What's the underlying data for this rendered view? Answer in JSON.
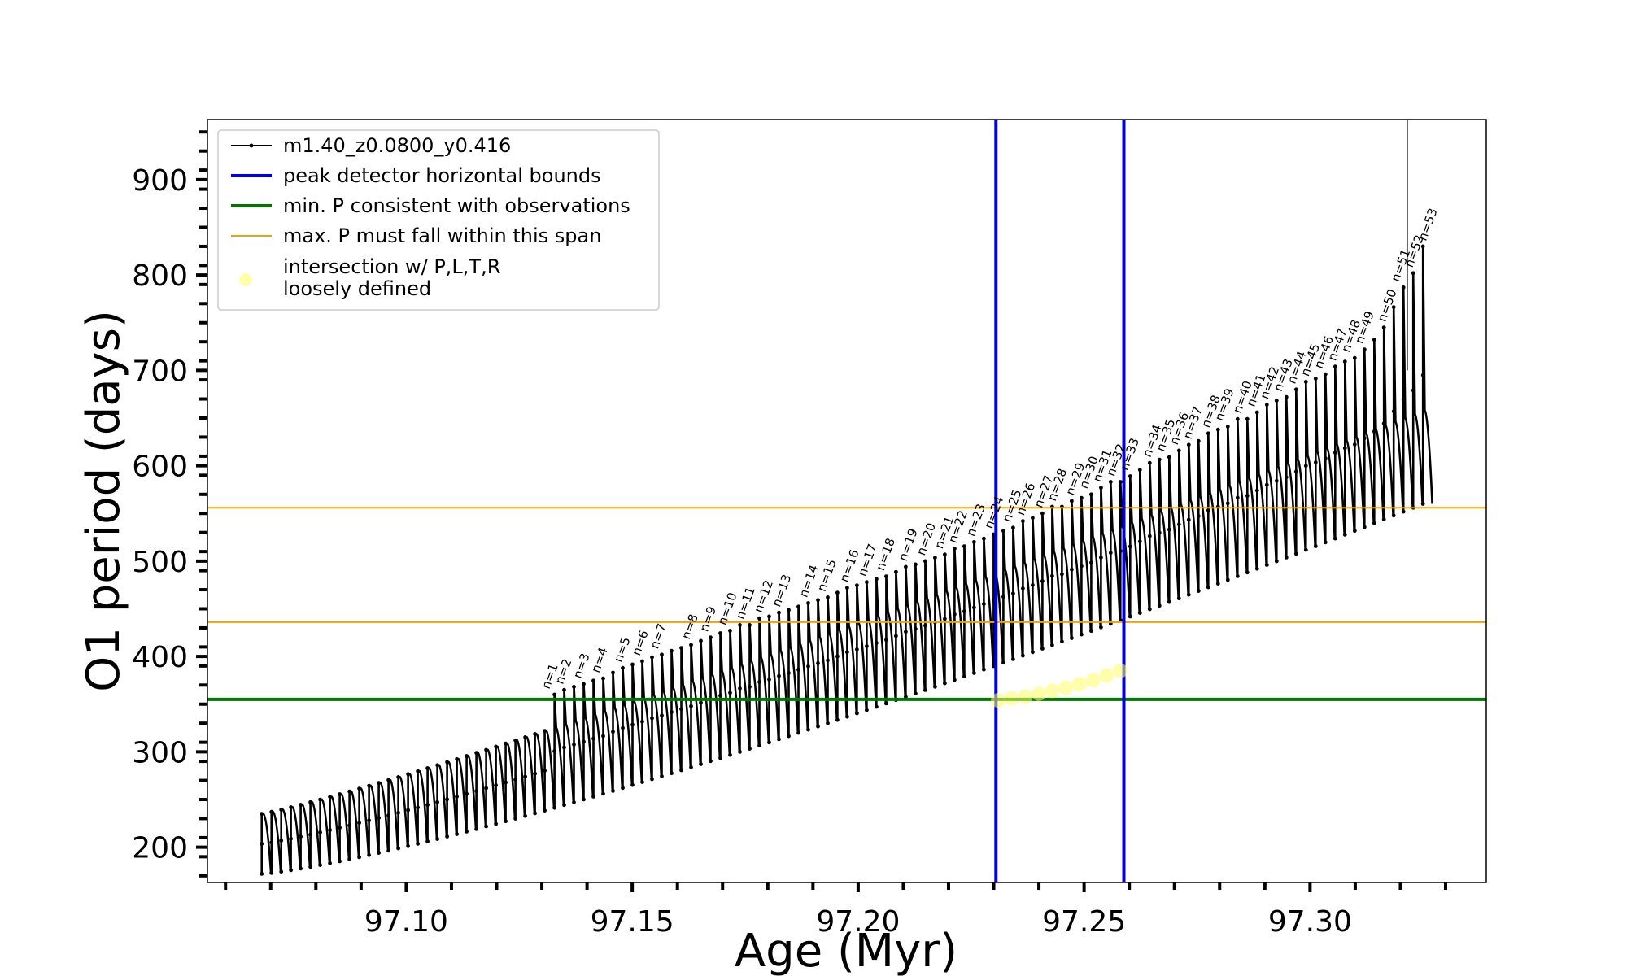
{
  "chart_data": {
    "type": "line",
    "title": "",
    "xlabel": "Age (Myr)",
    "ylabel": "O1 period (days)",
    "xlim": [
      97.056,
      97.339
    ],
    "ylim": [
      163,
      963
    ],
    "x_ticks": [
      97.1,
      97.15,
      97.2,
      97.25,
      97.3
    ],
    "x_tick_labels": [
      "97.10",
      "97.15",
      "97.20",
      "97.25",
      "97.30"
    ],
    "y_ticks": [
      200,
      300,
      400,
      500,
      600,
      700,
      800,
      900
    ],
    "y_tick_labels": [
      "200",
      "300",
      "400",
      "500",
      "600",
      "700",
      "800",
      "900"
    ],
    "grid": false,
    "legend_position": "top-left",
    "series": [
      {
        "name": "m1.40_z0.0800_y0.416",
        "color": "#000000",
        "style": "line-with-dots",
        "pulse_start_age": 97.068,
        "pulse_end_age": 97.325,
        "pulse_count": 120,
        "baseline_start_days": 172,
        "baseline_end_days": 560,
        "upper_start_days": 235,
        "upper_end_days": 658,
        "final_spike_age": 97.3215,
        "final_spike_days_top": 963
      },
      {
        "name": "peak detector horizontal bounds",
        "color": "#0000dd",
        "type": "vline",
        "x": [
          97.2305,
          97.2588
        ]
      },
      {
        "name": "min. P consistent with observations",
        "color": "#007700",
        "type": "hline",
        "y": [
          355
        ]
      },
      {
        "name": "max. P must fall within this span",
        "color": "#f5a000",
        "type": "hline",
        "y": [
          436,
          556
        ]
      },
      {
        "name": "intersection w/ P,L,T,R\nloosely defined",
        "color": "#ffff66",
        "type": "scatter",
        "x": [
          97.231,
          97.234,
          97.237,
          97.24,
          97.243,
          97.246,
          97.249,
          97.252,
          97.255,
          97.258
        ],
        "y": [
          354,
          356,
          358,
          361,
          364,
          367,
          371,
          375,
          380,
          385
        ]
      }
    ],
    "peak_labels": {
      "prefix": "n=",
      "count": 53,
      "points": [
        {
          "n": 1,
          "x": 97.132,
          "y": 360
        },
        {
          "n": 2,
          "x": 97.135,
          "y": 365
        },
        {
          "n": 3,
          "x": 97.139,
          "y": 371
        },
        {
          "n": 4,
          "x": 97.143,
          "y": 377
        },
        {
          "n": 5,
          "x": 97.148,
          "y": 388
        },
        {
          "n": 6,
          "x": 97.152,
          "y": 395
        },
        {
          "n": 7,
          "x": 97.156,
          "y": 402
        },
        {
          "n": 8,
          "x": 97.163,
          "y": 412
        },
        {
          "n": 9,
          "x": 97.167,
          "y": 420
        },
        {
          "n": 10,
          "x": 97.171,
          "y": 427
        },
        {
          "n": 11,
          "x": 97.175,
          "y": 433
        },
        {
          "n": 12,
          "x": 97.179,
          "y": 440
        },
        {
          "n": 13,
          "x": 97.183,
          "y": 446
        },
        {
          "n": 14,
          "x": 97.189,
          "y": 456
        },
        {
          "n": 15,
          "x": 97.193,
          "y": 462
        },
        {
          "n": 16,
          "x": 97.198,
          "y": 472
        },
        {
          "n": 17,
          "x": 97.202,
          "y": 478
        },
        {
          "n": 18,
          "x": 97.206,
          "y": 484
        },
        {
          "n": 19,
          "x": 97.211,
          "y": 494
        },
        {
          "n": 20,
          "x": 97.215,
          "y": 500
        },
        {
          "n": 21,
          "x": 97.219,
          "y": 507
        },
        {
          "n": 22,
          "x": 97.222,
          "y": 513
        },
        {
          "n": 23,
          "x": 97.226,
          "y": 520
        },
        {
          "n": 24,
          "x": 97.23,
          "y": 528
        },
        {
          "n": 25,
          "x": 97.234,
          "y": 535
        },
        {
          "n": 26,
          "x": 97.237,
          "y": 542
        },
        {
          "n": 27,
          "x": 97.241,
          "y": 550
        },
        {
          "n": 28,
          "x": 97.244,
          "y": 557
        },
        {
          "n": 29,
          "x": 97.248,
          "y": 563
        },
        {
          "n": 30,
          "x": 97.251,
          "y": 570
        },
        {
          "n": 31,
          "x": 97.254,
          "y": 577
        },
        {
          "n": 32,
          "x": 97.257,
          "y": 583
        },
        {
          "n": 33,
          "x": 97.26,
          "y": 589
        },
        {
          "n": 34,
          "x": 97.265,
          "y": 603
        },
        {
          "n": 35,
          "x": 97.268,
          "y": 609
        },
        {
          "n": 36,
          "x": 97.271,
          "y": 616
        },
        {
          "n": 37,
          "x": 97.274,
          "y": 622
        },
        {
          "n": 38,
          "x": 97.278,
          "y": 634
        },
        {
          "n": 39,
          "x": 97.281,
          "y": 641
        },
        {
          "n": 40,
          "x": 97.285,
          "y": 649
        },
        {
          "n": 41,
          "x": 97.288,
          "y": 656
        },
        {
          "n": 42,
          "x": 97.291,
          "y": 664
        },
        {
          "n": 43,
          "x": 97.294,
          "y": 672
        },
        {
          "n": 44,
          "x": 97.297,
          "y": 680
        },
        {
          "n": 45,
          "x": 97.3,
          "y": 688
        },
        {
          "n": 46,
          "x": 97.303,
          "y": 696
        },
        {
          "n": 47,
          "x": 97.306,
          "y": 704
        },
        {
          "n": 48,
          "x": 97.309,
          "y": 713
        },
        {
          "n": 49,
          "x": 97.312,
          "y": 722
        },
        {
          "n": 50,
          "x": 97.317,
          "y": 745
        },
        {
          "n": 51,
          "x": 97.32,
          "y": 787
        },
        {
          "n": 52,
          "x": 97.323,
          "y": 802
        },
        {
          "n": 53,
          "x": 97.326,
          "y": 830
        }
      ]
    }
  }
}
